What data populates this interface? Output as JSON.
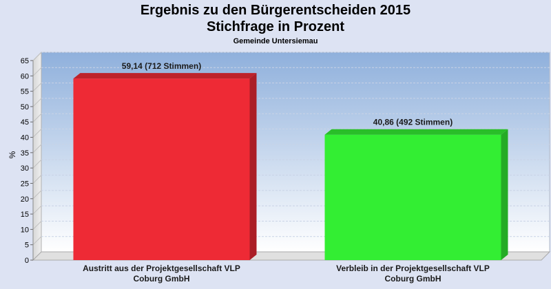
{
  "chart_data": {
    "type": "bar",
    "title": "Ergebnis zu den Bürgerentscheiden 2015",
    "subtitle": "Stichfrage in Prozent",
    "subtitle2": "Gemeinde Untersiemau",
    "ylabel": "%",
    "ylim": [
      0,
      65
    ],
    "yticks": [
      0,
      5,
      10,
      15,
      20,
      25,
      30,
      35,
      40,
      45,
      50,
      55,
      60,
      65
    ],
    "categories": [
      [
        "Austritt aus der Projektgesellschaft VLP",
        "Coburg GmbH"
      ],
      [
        "Verbleib in der Projektgesellschaft VLP",
        "Coburg GmbH"
      ]
    ],
    "values": [
      59.14,
      40.86
    ],
    "data_labels": [
      "59,14 (712 Stimmen)",
      "40,86 (492 Stimmen)"
    ],
    "colors": [
      "#ee2a35",
      "#33ee33"
    ],
    "grid": true
  }
}
